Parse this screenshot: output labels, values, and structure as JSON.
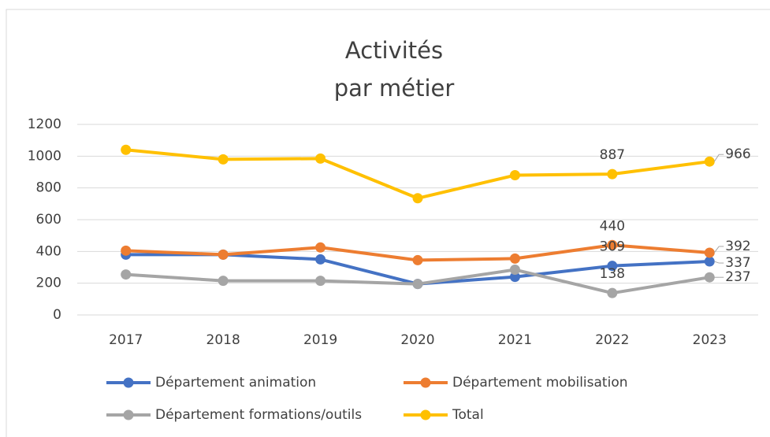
{
  "chart_data": {
    "type": "line",
    "title": "Activités\npar métier",
    "categories": [
      "2017",
      "2018",
      "2019",
      "2020",
      "2021",
      "2022",
      "2023"
    ],
    "series": [
      {
        "name": "Département animation",
        "color": "#4472c4",
        "values": [
          380,
          380,
          350,
          195,
          240,
          309,
          337
        ]
      },
      {
        "name": "Département mobilisation",
        "color": "#ed7d31",
        "values": [
          405,
          380,
          425,
          345,
          355,
          440,
          392
        ]
      },
      {
        "name": "Département formations/outils",
        "color": "#a5a5a5",
        "values": [
          255,
          215,
          215,
          195,
          285,
          138,
          237
        ]
      },
      {
        "name": "Total",
        "color": "#ffc000",
        "values": [
          1040,
          980,
          985,
          735,
          880,
          887,
          966
        ]
      }
    ],
    "data_labels": [
      5,
      6
    ],
    "ylim": [
      0,
      1200
    ],
    "yticks": [
      0,
      200,
      400,
      600,
      800,
      1000,
      1200
    ],
    "grid": true,
    "legend": "bottom"
  }
}
